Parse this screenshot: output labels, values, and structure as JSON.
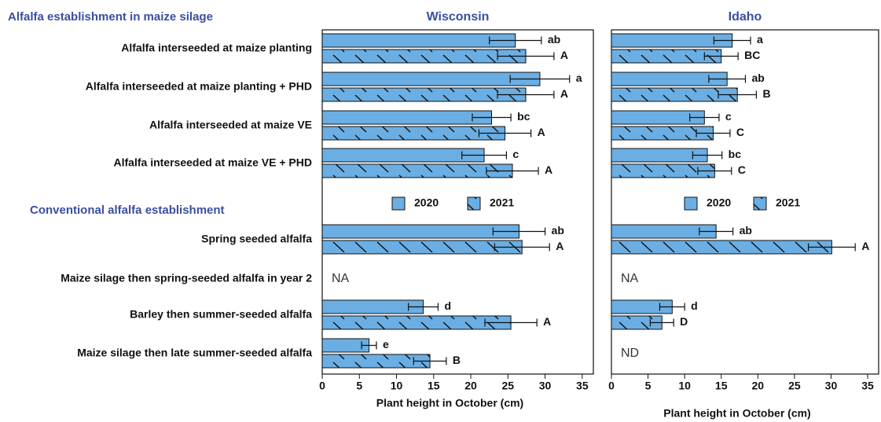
{
  "row_groups": [
    {
      "label": "Alfalfa establishment in maize silage",
      "categories": [
        "Alfalfa interseeded at maize planting",
        "Alfalfa interseeded at maize planting + PHD",
        "Alfalfa interseeded at maize VE",
        "Alfalfa interseeded at maize VE + PHD"
      ]
    },
    {
      "label": "Conventional alfalfa establishment",
      "categories": [
        "Spring seeded alfalfa",
        "Maize silage then spring-seeded alfalfa in year 2",
        "Barley then summer-seeded alfalfa",
        "Maize silage then late summer-seeded alfalfa"
      ]
    }
  ],
  "chart_data": [
    {
      "type": "bar",
      "orientation": "horizontal",
      "title": "Wisconsin",
      "xlabel": "Plant height in October (cm)",
      "xlim": [
        0,
        36.5
      ],
      "xticks": [
        0,
        5,
        10,
        15,
        20,
        25,
        30,
        35
      ],
      "series": [
        {
          "name": "2020",
          "color": "#6aaee3",
          "hatch": false,
          "values": [
            26,
            29.3,
            22.8,
            21.8,
            26.5,
            null,
            13.6,
            6.3
          ],
          "errors": [
            3.5,
            4,
            2.6,
            3,
            3.5,
            null,
            2,
            1
          ],
          "letters": [
            "ab",
            "a",
            "bc",
            "c",
            "ab",
            null,
            "d",
            "e"
          ]
        },
        {
          "name": "2021",
          "color": "#6aaee3",
          "hatch": true,
          "values": [
            27.4,
            27.4,
            24.6,
            25.6,
            26.9,
            null,
            25.4,
            14.5
          ],
          "errors": [
            3.8,
            3.8,
            3.5,
            3.5,
            3.7,
            null,
            3.5,
            2.2
          ],
          "letters": [
            "A",
            "A",
            "A",
            "A",
            "A",
            null,
            "A",
            "B"
          ]
        }
      ],
      "row_notes": [
        null,
        null,
        null,
        null,
        null,
        "NA",
        null,
        null
      ]
    },
    {
      "type": "bar",
      "orientation": "horizontal",
      "title": "Idaho",
      "xlabel": "Plant height in October (cm)",
      "xlim": [
        0,
        36.5
      ],
      "xticks": [
        0,
        5,
        10,
        15,
        20,
        25,
        30,
        35
      ],
      "series": [
        {
          "name": "2020",
          "color": "#6aaee3",
          "hatch": false,
          "values": [
            16.5,
            15.8,
            12.7,
            13.1,
            14.3,
            null,
            8.3,
            null
          ],
          "errors": [
            2.5,
            2.5,
            2,
            2,
            2.3,
            null,
            1.7,
            null
          ],
          "letters": [
            "a",
            "ab",
            "c",
            "bc",
            "ab",
            null,
            "d",
            null
          ]
        },
        {
          "name": "2021",
          "color": "#6aaee3",
          "hatch": true,
          "values": [
            15,
            17.2,
            13.9,
            14.1,
            30.1,
            null,
            6.9,
            null
          ],
          "errors": [
            2.3,
            2.6,
            2.3,
            2.3,
            3.2,
            null,
            1.6,
            null
          ],
          "letters": [
            "BC",
            "B",
            "C",
            "C",
            "A",
            null,
            "D",
            null
          ]
        }
      ],
      "row_notes": [
        null,
        null,
        null,
        null,
        null,
        "NA",
        null,
        "ND"
      ]
    }
  ]
}
